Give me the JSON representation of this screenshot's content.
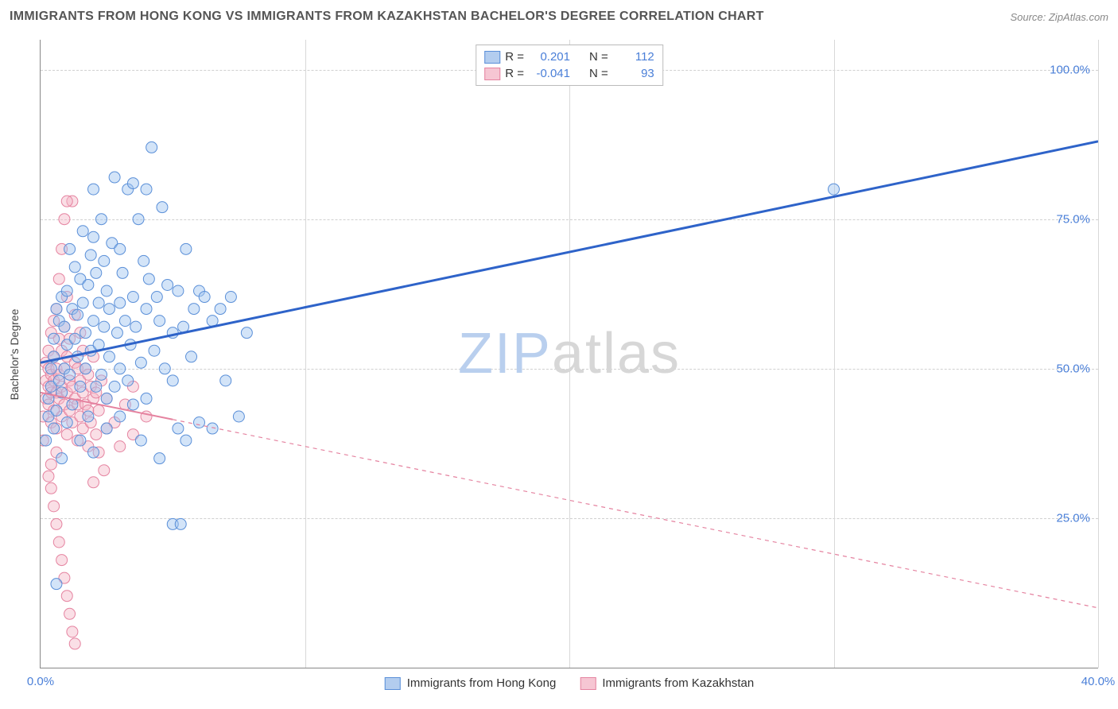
{
  "title": "IMMIGRANTS FROM HONG KONG VS IMMIGRANTS FROM KAZAKHSTAN BACHELOR'S DEGREE CORRELATION CHART",
  "source_label": "Source: ZipAtlas.com",
  "watermark": {
    "zip": "ZIP",
    "rest": "atlas"
  },
  "ylabel": "Bachelor's Degree",
  "chart": {
    "type": "scatter-with-regression",
    "background_color": "#ffffff",
    "grid_color": "#d0d0d0",
    "axis_color": "#888888",
    "xlim": [
      0,
      40
    ],
    "ylim": [
      0,
      105
    ],
    "x_ticks": [
      0,
      10,
      20,
      30,
      40
    ],
    "x_tick_labels": [
      "0.0%",
      "",
      "",
      "",
      "40.0%"
    ],
    "y_ticks": [
      25,
      50,
      75,
      100
    ],
    "y_tick_labels": [
      "25.0%",
      "50.0%",
      "75.0%",
      "100.0%"
    ],
    "marker_radius": 7,
    "marker_opacity": 0.45,
    "series": [
      {
        "name": "Immigrants from Hong Kong",
        "color_fill": "#9ec3ef",
        "color_stroke": "#5a8fd8",
        "swatch_fill": "#b3cdef",
        "swatch_border": "#5a8fd8",
        "R": "0.201",
        "N": "112",
        "regression": {
          "x1": 0,
          "y1": 51,
          "x2": 40,
          "y2": 88,
          "color": "#2e63c9",
          "width": 3,
          "dash": "none",
          "solid_until_x": 40
        },
        "points": [
          [
            0.2,
            38
          ],
          [
            0.3,
            42
          ],
          [
            0.3,
            45
          ],
          [
            0.4,
            47
          ],
          [
            0.4,
            50
          ],
          [
            0.5,
            40
          ],
          [
            0.5,
            52
          ],
          [
            0.5,
            55
          ],
          [
            0.6,
            60
          ],
          [
            0.6,
            43
          ],
          [
            0.7,
            48
          ],
          [
            0.7,
            58
          ],
          [
            0.8,
            46
          ],
          [
            0.8,
            62
          ],
          [
            0.8,
            35
          ],
          [
            0.9,
            50
          ],
          [
            0.9,
            57
          ],
          [
            1.0,
            54
          ],
          [
            1.0,
            41
          ],
          [
            1.0,
            63
          ],
          [
            1.1,
            70
          ],
          [
            1.1,
            49
          ],
          [
            1.2,
            60
          ],
          [
            1.2,
            44
          ],
          [
            1.3,
            55
          ],
          [
            1.3,
            67
          ],
          [
            1.4,
            52
          ],
          [
            1.4,
            59
          ],
          [
            1.5,
            65
          ],
          [
            1.5,
            47
          ],
          [
            1.6,
            61
          ],
          [
            1.6,
            73
          ],
          [
            1.7,
            50
          ],
          [
            1.7,
            56
          ],
          [
            1.8,
            64
          ],
          [
            1.8,
            42
          ],
          [
            1.9,
            69
          ],
          [
            1.9,
            53
          ],
          [
            2.0,
            58
          ],
          [
            2.0,
            80
          ],
          [
            2.1,
            47
          ],
          [
            2.1,
            66
          ],
          [
            2.2,
            54
          ],
          [
            2.2,
            61
          ],
          [
            2.3,
            75
          ],
          [
            2.3,
            49
          ],
          [
            2.4,
            57
          ],
          [
            2.4,
            68
          ],
          [
            2.5,
            45
          ],
          [
            2.5,
            63
          ],
          [
            2.6,
            52
          ],
          [
            2.6,
            60
          ],
          [
            2.7,
            71
          ],
          [
            2.8,
            47
          ],
          [
            2.8,
            82
          ],
          [
            2.9,
            56
          ],
          [
            3.0,
            61
          ],
          [
            3.0,
            50
          ],
          [
            3.1,
            66
          ],
          [
            3.2,
            58
          ],
          [
            3.3,
            80
          ],
          [
            3.3,
            48
          ],
          [
            3.4,
            54
          ],
          [
            3.5,
            81
          ],
          [
            3.5,
            62
          ],
          [
            3.6,
            57
          ],
          [
            3.7,
            75
          ],
          [
            3.8,
            51
          ],
          [
            3.9,
            68
          ],
          [
            4.0,
            60
          ],
          [
            4.0,
            45
          ],
          [
            4.1,
            65
          ],
          [
            4.2,
            87
          ],
          [
            4.3,
            53
          ],
          [
            4.4,
            62
          ],
          [
            4.5,
            58
          ],
          [
            4.6,
            77
          ],
          [
            4.7,
            50
          ],
          [
            4.8,
            64
          ],
          [
            5.0,
            56
          ],
          [
            5.0,
            24
          ],
          [
            5.2,
            40
          ],
          [
            5.2,
            63
          ],
          [
            5.3,
            24
          ],
          [
            5.4,
            57
          ],
          [
            5.5,
            70
          ],
          [
            5.7,
            52
          ],
          [
            5.8,
            60
          ],
          [
            6.0,
            41
          ],
          [
            6.0,
            63
          ],
          [
            6.2,
            62
          ],
          [
            6.5,
            40
          ],
          [
            6.5,
            58
          ],
          [
            6.8,
            60
          ],
          [
            7.0,
            48
          ],
          [
            7.2,
            62
          ],
          [
            7.5,
            42
          ],
          [
            7.8,
            56
          ],
          [
            0.6,
            14
          ],
          [
            1.5,
            38
          ],
          [
            2.0,
            36
          ],
          [
            2.0,
            72
          ],
          [
            2.5,
            40
          ],
          [
            3.0,
            42
          ],
          [
            3.0,
            70
          ],
          [
            3.5,
            44
          ],
          [
            3.8,
            38
          ],
          [
            4.0,
            80
          ],
          [
            4.5,
            35
          ],
          [
            5.0,
            48
          ],
          [
            5.5,
            38
          ],
          [
            30.0,
            80
          ]
        ]
      },
      {
        "name": "Immigrants from Kazakhstan",
        "color_fill": "#f5b9c8",
        "color_stroke": "#e583a0",
        "swatch_fill": "#f6c6d3",
        "swatch_border": "#e583a0",
        "R": "-0.041",
        "N": "93",
        "regression": {
          "x1": 0,
          "y1": 46,
          "x2": 40,
          "y2": 10,
          "color": "#e583a0",
          "width": 2,
          "dash": "5,5",
          "solid_until_x": 5
        },
        "points": [
          [
            0.1,
            38
          ],
          [
            0.1,
            42
          ],
          [
            0.2,
            45
          ],
          [
            0.2,
            48
          ],
          [
            0.2,
            51
          ],
          [
            0.3,
            44
          ],
          [
            0.3,
            47
          ],
          [
            0.3,
            50
          ],
          [
            0.3,
            53
          ],
          [
            0.4,
            41
          ],
          [
            0.4,
            46
          ],
          [
            0.4,
            49
          ],
          [
            0.4,
            56
          ],
          [
            0.5,
            43
          ],
          [
            0.5,
            48
          ],
          [
            0.5,
            52
          ],
          [
            0.5,
            58
          ],
          [
            0.6,
            40
          ],
          [
            0.6,
            46
          ],
          [
            0.6,
            50
          ],
          [
            0.6,
            60
          ],
          [
            0.7,
            45
          ],
          [
            0.7,
            49
          ],
          [
            0.7,
            55
          ],
          [
            0.7,
            65
          ],
          [
            0.8,
            42
          ],
          [
            0.8,
            47
          ],
          [
            0.8,
            53
          ],
          [
            0.8,
            70
          ],
          [
            0.9,
            44
          ],
          [
            0.9,
            50
          ],
          [
            0.9,
            57
          ],
          [
            0.9,
            75
          ],
          [
            1.0,
            39
          ],
          [
            1.0,
            46
          ],
          [
            1.0,
            52
          ],
          [
            1.0,
            62
          ],
          [
            1.1,
            43
          ],
          [
            1.1,
            48
          ],
          [
            1.1,
            55
          ],
          [
            1.2,
            41
          ],
          [
            1.2,
            47
          ],
          [
            1.2,
            78
          ],
          [
            1.3,
            45
          ],
          [
            1.3,
            51
          ],
          [
            1.3,
            59
          ],
          [
            1.4,
            38
          ],
          [
            1.4,
            44
          ],
          [
            1.4,
            50
          ],
          [
            1.5,
            42
          ],
          [
            1.5,
            48
          ],
          [
            1.5,
            56
          ],
          [
            1.6,
            40
          ],
          [
            1.6,
            46
          ],
          [
            1.6,
            53
          ],
          [
            1.7,
            44
          ],
          [
            1.7,
            50
          ],
          [
            1.8,
            37
          ],
          [
            1.8,
            43
          ],
          [
            1.8,
            49
          ],
          [
            1.9,
            41
          ],
          [
            1.9,
            47
          ],
          [
            2.0,
            31
          ],
          [
            2.0,
            45
          ],
          [
            2.0,
            52
          ],
          [
            2.1,
            39
          ],
          [
            2.1,
            46
          ],
          [
            2.2,
            36
          ],
          [
            2.2,
            43
          ],
          [
            2.3,
            48
          ],
          [
            2.4,
            33
          ],
          [
            2.5,
            40
          ],
          [
            2.5,
            45
          ],
          [
            2.8,
            41
          ],
          [
            3.0,
            37
          ],
          [
            3.2,
            44
          ],
          [
            3.5,
            39
          ],
          [
            0.4,
            30
          ],
          [
            0.5,
            27
          ],
          [
            0.6,
            24
          ],
          [
            0.7,
            21
          ],
          [
            0.8,
            18
          ],
          [
            0.9,
            15
          ],
          [
            1.0,
            12
          ],
          [
            1.1,
            9
          ],
          [
            1.2,
            6
          ],
          [
            1.3,
            4
          ],
          [
            0.3,
            32
          ],
          [
            0.4,
            34
          ],
          [
            0.6,
            36
          ],
          [
            3.5,
            47
          ],
          [
            4.0,
            42
          ],
          [
            1.0,
            78
          ]
        ]
      }
    ]
  },
  "legend_top": {
    "r_label": "R =",
    "n_label": "N ="
  }
}
